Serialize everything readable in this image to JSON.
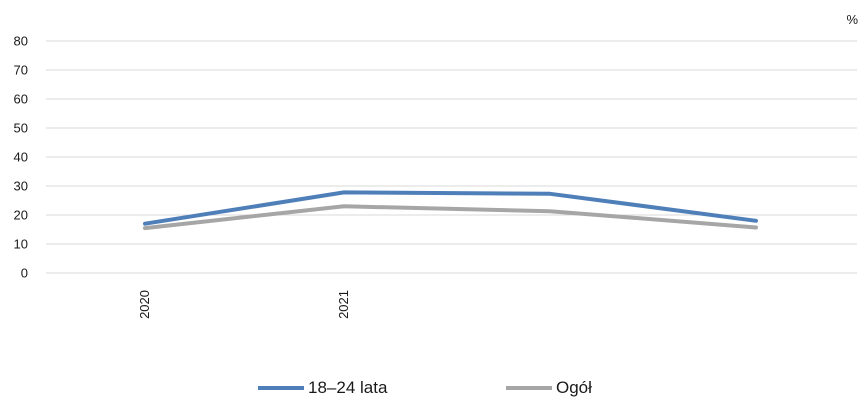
{
  "chart_data": {
    "type": "line",
    "unit_label": "%",
    "x": [
      "2020",
      "2021",
      "",
      ""
    ],
    "ylim": [
      0,
      80
    ],
    "yticks": [
      0,
      10,
      20,
      30,
      40,
      50,
      60,
      70,
      80
    ],
    "grid": true,
    "legend_position": "bottom",
    "series": [
      {
        "name": "18–24 lata",
        "color": "#4f7fb8",
        "values": [
          17,
          27.8,
          27.3,
          18
        ]
      },
      {
        "name": "Ogół",
        "color": "#a6a6a6",
        "values": [
          15.5,
          23,
          21.3,
          15.7
        ]
      }
    ]
  }
}
